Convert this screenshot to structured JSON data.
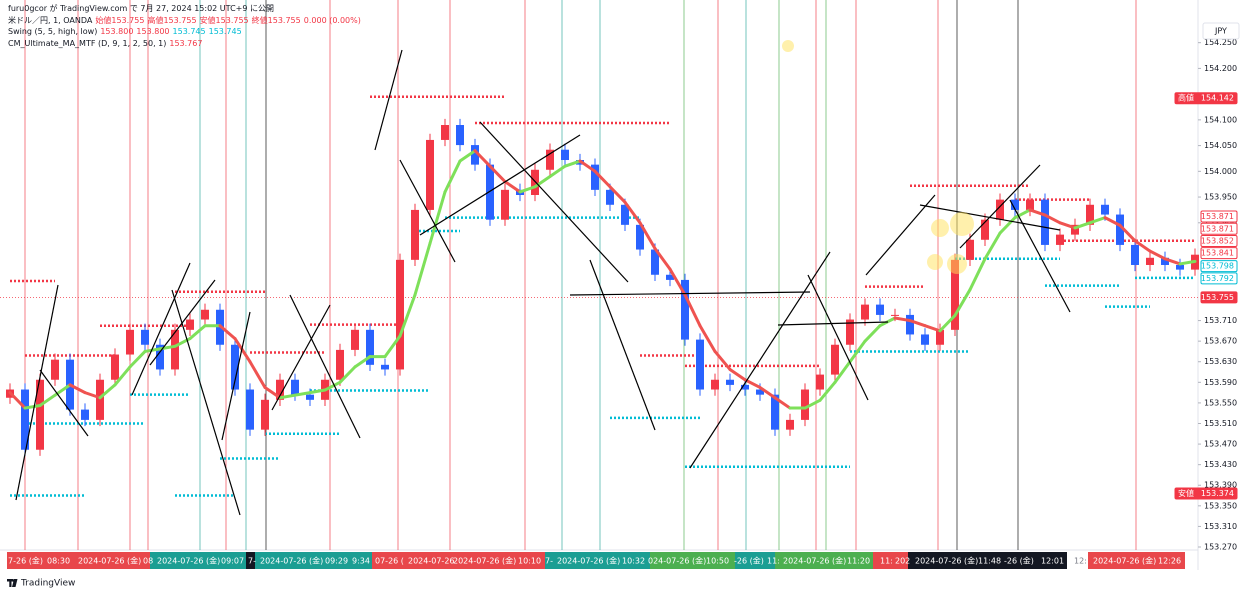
{
  "header": {
    "title": "furu0gcor が TradingView.com で 7月 27, 2024 15:02 UTC+9 に公開",
    "legend": [
      {
        "name": "米ドル／円, 1, OANDA",
        "items": [
          {
            "text": "始値153.755",
            "color": "#f23645"
          },
          {
            "text": "高値153.755",
            "color": "#f23645"
          },
          {
            "text": "安値153.755",
            "color": "#f23645"
          },
          {
            "text": "終値153.755",
            "color": "#f23645"
          },
          {
            "text": "0.000 (0.00%)",
            "color": "#f23645"
          }
        ]
      },
      {
        "name": "Swing (5, 5, high, low)",
        "items": [
          {
            "text": "153.800",
            "color": "#f23645"
          },
          {
            "text": "153.800",
            "color": "#f23645"
          },
          {
            "text": "153.745",
            "color": "#00bcd4"
          },
          {
            "text": "153.745",
            "color": "#00bcd4"
          }
        ]
      },
      {
        "name": "CM_Ultimate_MA_MTF (D, 9, 1, 2, 50, 1)",
        "items": [
          {
            "text": "153.767",
            "color": "#f23645"
          }
        ]
      }
    ]
  },
  "currency": "JPY",
  "footer": {
    "brand": "TradingView"
  },
  "chart_data": {
    "type": "candlestick",
    "ylim": [
      153.27,
      154.33
    ],
    "yticks": [
      {
        "value": 154.25,
        "label": "154.250"
      },
      {
        "value": 154.2,
        "label": "154.200"
      },
      {
        "value": 154.1,
        "label": "154.100"
      },
      {
        "value": 154.05,
        "label": "154.050"
      },
      {
        "value": 154.0,
        "label": "154.000"
      },
      {
        "value": 153.95,
        "label": "153.950"
      },
      {
        "value": 153.9,
        "label": "153.900"
      },
      {
        "value": 153.71,
        "label": "153.710"
      },
      {
        "value": 153.67,
        "label": "153.670"
      },
      {
        "value": 153.63,
        "label": "153.630"
      },
      {
        "value": 153.59,
        "label": "153.590"
      },
      {
        "value": 153.55,
        "label": "153.550"
      },
      {
        "value": 153.51,
        "label": "153.510"
      },
      {
        "value": 153.47,
        "label": "153.470"
      },
      {
        "value": 153.43,
        "label": "153.430"
      },
      {
        "value": 153.39,
        "label": "153.390"
      },
      {
        "value": 153.35,
        "label": "153.350"
      },
      {
        "value": 153.31,
        "label": "153.310"
      },
      {
        "value": 153.27,
        "label": "153.270"
      }
    ],
    "up_color": "#f23645",
    "down_color": "#2962ff",
    "open": [
      153.56,
      153.576,
      153.459,
      153.595,
      153.634,
      153.537,
      153.517,
      153.595,
      153.644,
      153.692,
      153.663,
      153.615,
      153.692,
      153.712,
      153.731,
      153.663,
      153.576,
      153.498,
      153.556,
      153.595,
      153.566,
      153.556,
      153.595,
      153.653,
      153.692,
      153.624,
      153.615,
      153.828,
      153.925,
      154.061,
      154.09,
      154.051,
      154.013,
      153.906,
      153.964,
      153.954,
      154.003,
      154.042,
      154.022,
      154.013,
      153.964,
      153.935,
      153.896,
      153.848,
      153.799,
      153.789,
      153.673,
      153.576,
      153.595,
      153.585,
      153.576,
      153.566,
      153.498,
      153.517,
      153.576,
      153.605,
      153.663,
      153.712,
      153.741,
      153.721,
      153.721,
      153.683,
      153.663,
      153.692,
      153.828,
      153.867,
      153.906,
      153.945,
      153.925,
      153.945,
      153.857,
      153.877,
      153.896,
      153.935,
      153.916,
      153.857,
      153.818,
      153.832,
      153.818,
      153.809
    ],
    "high": [
      153.588,
      153.588,
      153.607,
      153.646,
      153.646,
      153.549,
      153.607,
      153.656,
      153.704,
      153.704,
      153.675,
      153.704,
      153.724,
      153.743,
      153.743,
      153.675,
      153.588,
      153.568,
      153.607,
      153.607,
      153.578,
      153.607,
      153.665,
      153.704,
      153.704,
      153.636,
      153.84,
      153.937,
      154.073,
      154.102,
      154.102,
      154.063,
      154.025,
      153.976,
      153.976,
      154.015,
      154.054,
      154.054,
      154.034,
      154.025,
      153.976,
      153.947,
      153.908,
      153.86,
      153.811,
      153.801,
      153.685,
      153.607,
      153.607,
      153.597,
      153.588,
      153.578,
      153.529,
      153.588,
      153.617,
      153.675,
      153.724,
      153.753,
      153.753,
      153.733,
      153.733,
      153.695,
      153.704,
      153.84,
      153.879,
      153.918,
      153.957,
      153.957,
      153.957,
      153.957,
      153.889,
      153.908,
      153.947,
      153.947,
      153.928,
      153.869,
      153.844,
      153.844,
      153.83,
      153.85
    ],
    "low": [
      153.548,
      153.447,
      153.447,
      153.583,
      153.525,
      153.505,
      153.505,
      153.583,
      153.632,
      153.651,
      153.603,
      153.603,
      153.68,
      153.7,
      153.651,
      153.564,
      153.486,
      153.486,
      153.544,
      153.554,
      153.544,
      153.544,
      153.583,
      153.641,
      153.612,
      153.603,
      153.603,
      153.816,
      153.913,
      154.049,
      154.039,
      154.001,
      153.894,
      153.894,
      153.942,
      153.942,
      153.991,
      154.01,
      154.001,
      153.952,
      153.923,
      153.884,
      153.836,
      153.787,
      153.777,
      153.661,
      153.564,
      153.564,
      153.573,
      153.564,
      153.554,
      153.486,
      153.486,
      153.505,
      153.564,
      153.593,
      153.651,
      153.7,
      153.709,
      153.709,
      153.671,
      153.651,
      153.651,
      153.68,
      153.816,
      153.855,
      153.894,
      153.913,
      153.913,
      153.845,
      153.845,
      153.865,
      153.884,
      153.904,
      153.845,
      153.806,
      153.806,
      153.806,
      153.797,
      153.797
    ],
    "close": [
      153.576,
      153.459,
      153.595,
      153.634,
      153.537,
      153.517,
      153.595,
      153.644,
      153.692,
      153.663,
      153.615,
      153.692,
      153.712,
      153.731,
      153.663,
      153.576,
      153.498,
      153.556,
      153.595,
      153.566,
      153.556,
      153.595,
      153.653,
      153.692,
      153.624,
      153.615,
      153.828,
      153.925,
      154.061,
      154.09,
      154.051,
      154.013,
      153.906,
      153.964,
      153.954,
      154.003,
      154.042,
      154.022,
      154.013,
      153.964,
      153.935,
      153.896,
      153.848,
      153.799,
      153.789,
      153.673,
      153.576,
      153.595,
      153.585,
      153.576,
      153.566,
      153.498,
      153.517,
      153.576,
      153.605,
      153.663,
      153.712,
      153.741,
      153.721,
      153.721,
      153.683,
      153.663,
      153.692,
      153.828,
      153.867,
      153.906,
      153.945,
      153.925,
      153.945,
      153.857,
      153.877,
      153.896,
      153.935,
      153.916,
      153.857,
      153.818,
      153.832,
      153.818,
      153.809,
      153.838
    ],
    "ma": {
      "rise_color": "#7ee05a",
      "fall_color": "#ef5350",
      "values": [
        153.57,
        153.54,
        153.545,
        153.565,
        153.585,
        153.57,
        153.56,
        153.585,
        153.62,
        153.65,
        153.655,
        153.66,
        153.675,
        153.7,
        153.7,
        153.675,
        153.63,
        153.58,
        153.56,
        153.565,
        153.57,
        153.575,
        153.59,
        153.62,
        153.64,
        153.64,
        153.68,
        153.76,
        153.86,
        153.96,
        154.02,
        154.04,
        154.01,
        153.98,
        153.96,
        153.97,
        153.99,
        154.01,
        154.02,
        154.0,
        153.97,
        153.94,
        153.9,
        153.85,
        153.81,
        153.76,
        153.7,
        153.65,
        153.615,
        153.595,
        153.58,
        153.56,
        153.54,
        153.54,
        153.555,
        153.59,
        153.63,
        153.67,
        153.7,
        153.715,
        153.71,
        153.7,
        153.69,
        153.72,
        153.77,
        153.83,
        153.88,
        153.91,
        153.925,
        153.915,
        153.9,
        153.89,
        153.9,
        153.91,
        153.895,
        153.865,
        153.845,
        153.83,
        153.82,
        153.825
      ]
    },
    "swing_levels": [
      {
        "price": 153.787,
        "from": 0,
        "to": 3,
        "color": "#f23645"
      },
      {
        "price": 153.766,
        "from": 11,
        "to": 17,
        "color": "#f23645"
      },
      {
        "price": 153.7,
        "from": 6,
        "to": 12,
        "color": "#f23645"
      },
      {
        "price": 153.702,
        "from": 20,
        "to": 26,
        "color": "#f23645"
      },
      {
        "price": 153.642,
        "from": 1,
        "to": 7,
        "color": "#f23645"
      },
      {
        "price": 153.648,
        "from": 16,
        "to": 21,
        "color": "#f23645"
      },
      {
        "price": 154.145,
        "from": 24,
        "to": 33,
        "color": "#f23645"
      },
      {
        "price": 154.094,
        "from": 31,
        "to": 44,
        "color": "#f23645"
      },
      {
        "price": 153.972,
        "from": 60,
        "to": 68,
        "color": "#f23645"
      },
      {
        "price": 153.945,
        "from": 67,
        "to": 72,
        "color": "#f23645"
      },
      {
        "price": 153.865,
        "from": 70,
        "to": 79,
        "color": "#f23645"
      },
      {
        "price": 153.642,
        "from": 42,
        "to": 46,
        "color": "#f23645"
      },
      {
        "price": 153.622,
        "from": 45,
        "to": 54,
        "color": "#f23645"
      },
      {
        "price": 153.776,
        "from": 57,
        "to": 61,
        "color": "#f23645"
      },
      {
        "price": 153.37,
        "from": 0,
        "to": 5,
        "color": "#00bcd4"
      },
      {
        "price": 153.51,
        "from": 1,
        "to": 9,
        "color": "#00bcd4"
      },
      {
        "price": 153.566,
        "from": 8,
        "to": 12,
        "color": "#00bcd4"
      },
      {
        "price": 153.37,
        "from": 11,
        "to": 15,
        "color": "#00bcd4"
      },
      {
        "price": 153.442,
        "from": 14,
        "to": 18,
        "color": "#00bcd4"
      },
      {
        "price": 153.49,
        "from": 17,
        "to": 22,
        "color": "#00bcd4"
      },
      {
        "price": 153.574,
        "from": 20,
        "to": 28,
        "color": "#00bcd4"
      },
      {
        "price": 153.884,
        "from": 27,
        "to": 30,
        "color": "#00bcd4"
      },
      {
        "price": 153.91,
        "from": 29,
        "to": 42,
        "color": "#00bcd4"
      },
      {
        "price": 153.521,
        "from": 40,
        "to": 46,
        "color": "#00bcd4"
      },
      {
        "price": 153.426,
        "from": 45,
        "to": 56,
        "color": "#00bcd4"
      },
      {
        "price": 153.65,
        "from": 56,
        "to": 64,
        "color": "#00bcd4"
      },
      {
        "price": 153.83,
        "from": 63,
        "to": 70,
        "color": "#00bcd4"
      },
      {
        "price": 153.778,
        "from": 69,
        "to": 74,
        "color": "#00bcd4"
      },
      {
        "price": 153.737,
        "from": 73,
        "to": 76,
        "color": "#00bcd4"
      },
      {
        "price": 153.793,
        "from": 75,
        "to": 79,
        "color": "#00bcd4"
      }
    ],
    "price_labels": [
      {
        "prefix": "高値",
        "value": 154.142,
        "label": "154.142",
        "color": "#f23645",
        "filled": true
      },
      {
        "value": 153.871,
        "label": "153.871",
        "color": "#f23645",
        "filled": false
      },
      {
        "value": 153.871,
        "label": "153.871",
        "color": "#f23645",
        "filled": false
      },
      {
        "value": 153.852,
        "label": "153.852",
        "color": "#f23645",
        "filled": false
      },
      {
        "value": 153.841,
        "label": "153.841",
        "color": "#f23645",
        "filled": false
      },
      {
        "value": 153.798,
        "label": "153.798",
        "color": "#00bcd4",
        "filled": false
      },
      {
        "value": 153.792,
        "label": "153.792",
        "color": "#00bcd4",
        "filled": false
      },
      {
        "value": 153.755,
        "label": "153.755",
        "color": "#f23645",
        "filled": true,
        "line": true
      },
      {
        "prefix": "安値",
        "value": 153.374,
        "label": "153.374",
        "color": "#f23645",
        "filled": true
      }
    ],
    "time_labels": [
      "7-26 (金)",
      "08:30",
      "2024-07-26 (金)",
      "08",
      "2024-07-26 (金)",
      "09:07",
      "7-",
      "2024-07-26 (金)",
      "09:29",
      "9:34",
      "07-26 (",
      "2024-07-26",
      "2024-07-26 (金)",
      "10:10",
      "7-",
      "2024-07-26 (金)",
      "10:32",
      "024-07-26 (金)",
      "10:50",
      "-26 (金)",
      "11:",
      "2024-07-26 (金)",
      "11:20",
      "11:",
      "202",
      "2024-07-26 (金)",
      "11:48",
      "-26 (金)",
      "12:01",
      "12:",
      "2024-07-26 (金)",
      "12:26"
    ]
  }
}
